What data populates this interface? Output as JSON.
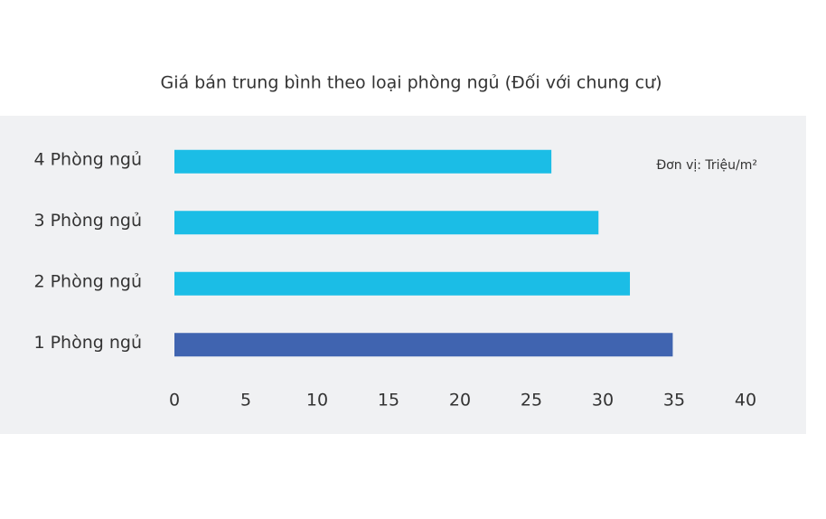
{
  "chart_data": {
    "type": "hbar",
    "title": "Giá bán trung bình theo loại phòng ngủ (Đối với chung cư)",
    "annotation": "Đơn vị: Triệu/m²",
    "categories": [
      "4 Phòng ngủ",
      "3 Phòng ngủ",
      "2 Phòng ngủ",
      "1 Phòng ngủ"
    ],
    "values": [
      26.4,
      29.7,
      31.9,
      34.9
    ],
    "colors": [
      "#1bbde6",
      "#1bbde6",
      "#1bbde6",
      "#4064b0"
    ],
    "xlim": [
      0,
      40
    ],
    "xticks": [
      0,
      5,
      10,
      15,
      20,
      25,
      30,
      35,
      40
    ],
    "grid": false
  }
}
